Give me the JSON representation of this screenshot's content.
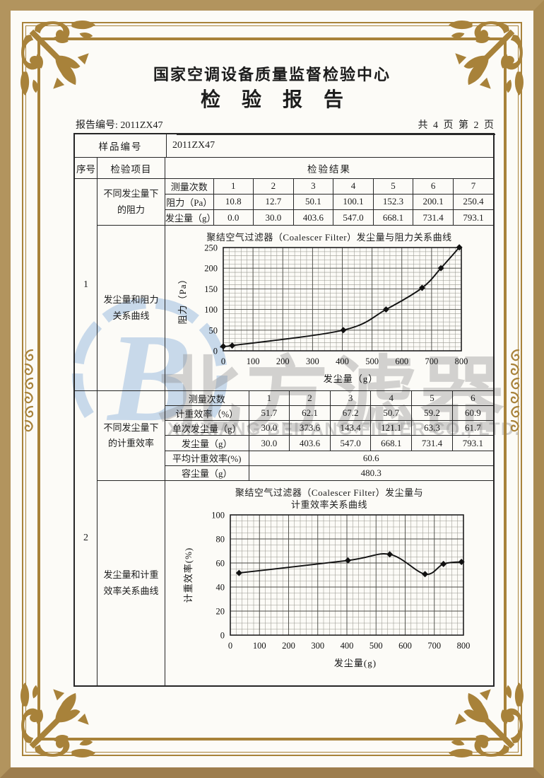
{
  "page": {
    "org_title": "国家空调设备质量监督检验中心",
    "report_title": "检验报告",
    "report_no": "报告编号: 2011ZX47",
    "page_info": "共 4 页 第 2 页"
  },
  "watermark": {
    "logo_letter": "B",
    "brand_cn": "北方滤器",
    "brand_en": "XINXIANG BEIFANG FILTER CO., LTD."
  },
  "table": {
    "sample_no_label": "样品编号",
    "sample_no_value": "2011ZX47",
    "col_seq": "序号",
    "col_item": "检验项目",
    "col_result": "检验结果",
    "block1": {
      "seq": "1",
      "item1": "不同发尘量下的阻力",
      "item2": "发尘量和阻力关系曲线",
      "t1": {
        "rows": [
          {
            "label": "测量次数",
            "values": [
              "1",
              "2",
              "3",
              "4",
              "5",
              "6",
              "7"
            ]
          },
          {
            "label": "阻力（Pa）",
            "values": [
              "10.8",
              "12.7",
              "50.1",
              "100.1",
              "152.3",
              "200.1",
              "250.4"
            ]
          },
          {
            "label": "发尘量（g）",
            "values": [
              "0.0",
              "30.0",
              "403.6",
              "547.0",
              "668.1",
              "731.4",
              "793.1"
            ]
          }
        ]
      }
    },
    "block2": {
      "seq": "2",
      "item1": "不同发尘量下的计重效率",
      "item2": "发尘量和计重效率关系曲线",
      "t2": {
        "rows": [
          {
            "label": "测量次数",
            "values": [
              "1",
              "2",
              "3",
              "4",
              "5",
              "6"
            ]
          },
          {
            "label": "计重效率（%）",
            "values": [
              "51.7",
              "62.1",
              "67.2",
              "50.7",
              "59.2",
              "60.9"
            ]
          },
          {
            "label": "单次发尘量（g）",
            "values": [
              "30.0",
              "373.6",
              "143.4",
              "121.1",
              "63.3",
              "61.7"
            ]
          },
          {
            "label": "发尘量（g）",
            "values": [
              "30.0",
              "403.6",
              "547.0",
              "668.1",
              "731.4",
              "793.1"
            ]
          }
        ],
        "avg_label": "平均计重效率(%)",
        "avg_value": "60.6",
        "cap_label": "容尘量（g）",
        "cap_value": "480.3"
      }
    }
  },
  "chart_data": [
    {
      "type": "line",
      "title": "聚结空气过滤器（Coalescer Filter）发尘量与阻力关系曲线",
      "title_lines": [
        "聚结空气过滤器（Coalescer Filter）发尘量与阻力关系曲线"
      ],
      "xlabel": "发尘量（g）",
      "ylabel": "阻力（Pa）",
      "x": [
        0,
        30.0,
        403.6,
        547.0,
        668.1,
        731.4,
        793.1
      ],
      "y": [
        10.8,
        12.7,
        50.1,
        100.1,
        152.3,
        200.1,
        250.4
      ],
      "xlim": [
        0,
        800
      ],
      "ylim": [
        0,
        250
      ],
      "xticks": [
        0,
        100,
        200,
        300,
        400,
        500,
        600,
        700,
        800
      ],
      "yticks": [
        0,
        50,
        100,
        150,
        200,
        250
      ],
      "grid": true,
      "marker": "diamond",
      "line_color": "#111111"
    },
    {
      "type": "line",
      "title": "聚结空气过滤器（Coalescer Filter）发尘量与计重效率关系曲线",
      "title_lines": [
        "聚结空气过滤器（Coalescer Filter）发尘量与",
        "计重效率关系曲线"
      ],
      "xlabel": "发尘量(g)",
      "ylabel": "计重效率(%)",
      "x": [
        30.0,
        403.6,
        547.0,
        668.1,
        731.4,
        793.1
      ],
      "y": [
        51.7,
        62.1,
        67.2,
        50.7,
        59.2,
        60.9
      ],
      "xlim": [
        0,
        800
      ],
      "ylim": [
        0,
        100
      ],
      "xticks": [
        0,
        100,
        200,
        300,
        400,
        500,
        600,
        700,
        800
      ],
      "yticks": [
        0,
        20,
        40,
        60,
        80,
        100
      ],
      "grid": true,
      "marker": "diamond",
      "line_color": "#111111"
    }
  ]
}
